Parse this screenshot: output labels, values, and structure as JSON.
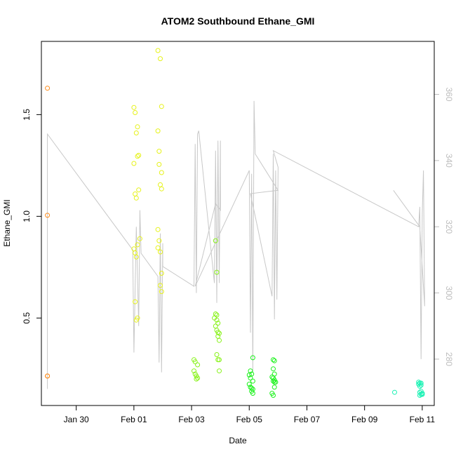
{
  "chart_data": {
    "type": "scatter",
    "title": "ATOM2 Southbound Ethane_GMI",
    "xlabel": "Date",
    "ylabel": "Ethane_GMI",
    "xlim": [
      "2017-01-28T19:00",
      "2017-02-11T10:00"
    ],
    "ylim": [
      0.07,
      1.86
    ],
    "y2lim": [
      266,
      376
    ],
    "x_ticks": [
      {
        "date": "2017-01-30",
        "label": "Jan 30"
      },
      {
        "date": "2017-02-01",
        "label": "Feb 01"
      },
      {
        "date": "2017-02-03",
        "label": "Feb 03"
      },
      {
        "date": "2017-02-05",
        "label": "Feb 05"
      },
      {
        "date": "2017-02-07",
        "label": "Feb 07"
      },
      {
        "date": "2017-02-09",
        "label": "Feb 09"
      },
      {
        "date": "2017-02-11",
        "label": "Feb 11"
      }
    ],
    "y_ticks": [
      0.5,
      1.0,
      1.5
    ],
    "y_tick_labels": [
      "0.5",
      "1.0",
      "1.5"
    ],
    "y2_ticks": [
      280,
      300,
      320,
      340,
      360
    ],
    "y2_tick_labels": [
      "280",
      "300",
      "320",
      "340",
      "360"
    ],
    "grid": false,
    "legend": "none",
    "colors": {
      "frame": "#000000",
      "right_axis": "#bdbdbd",
      "line": "#c8c8c8"
    },
    "series": [
      {
        "color": "#ff8c1a",
        "points": [
          [
            "2017-01-29T00:00",
            1.63
          ],
          [
            "2017-01-29T00:00",
            1.005
          ],
          [
            "2017-01-29T00:00",
            0.215
          ],
          [
            "2017-01-29T00:00",
            0.215
          ]
        ]
      },
      {
        "color": "#e6f21a",
        "points": [
          [
            "2017-02-01T00:00",
            1.535
          ],
          [
            "2017-02-01T01:00",
            1.51
          ],
          [
            "2017-02-01T03:00",
            1.44
          ],
          [
            "2017-02-01T02:00",
            1.41
          ],
          [
            "2017-02-01T04:00",
            1.3
          ],
          [
            "2017-02-01T03:00",
            1.295
          ],
          [
            "2017-02-01T00:00",
            1.26
          ],
          [
            "2017-02-01T04:00",
            1.13
          ],
          [
            "2017-02-01T01:00",
            1.11
          ],
          [
            "2017-02-01T02:00",
            1.09
          ],
          [
            "2017-02-01T05:00",
            0.89
          ],
          [
            "2017-02-01T00:00",
            0.84
          ],
          [
            "2017-02-01T03:00",
            0.86
          ],
          [
            "2017-02-01T01:00",
            0.82
          ],
          [
            "2017-02-01T02:00",
            0.8
          ],
          [
            "2017-02-01T01:00",
            0.58
          ],
          [
            "2017-02-01T03:00",
            0.5
          ],
          [
            "2017-02-01T02:00",
            0.49
          ],
          [
            "2017-02-01T20:00",
            1.815
          ],
          [
            "2017-02-01T22:00",
            1.775
          ],
          [
            "2017-02-01T23:00",
            1.54
          ],
          [
            "2017-02-01T20:00",
            1.42
          ],
          [
            "2017-02-01T21:00",
            1.32
          ],
          [
            "2017-02-01T21:00",
            1.255
          ],
          [
            "2017-02-01T23:00",
            1.215
          ],
          [
            "2017-02-01T22:00",
            1.155
          ],
          [
            "2017-02-01T23:00",
            1.135
          ],
          [
            "2017-02-01T20:00",
            0.935
          ],
          [
            "2017-02-01T21:00",
            0.88
          ],
          [
            "2017-02-01T20:00",
            0.845
          ],
          [
            "2017-02-01T22:00",
            0.825
          ],
          [
            "2017-02-01T23:00",
            0.72
          ],
          [
            "2017-02-01T22:00",
            0.66
          ],
          [
            "2017-02-01T23:00",
            0.63
          ]
        ]
      },
      {
        "color": "#88f21a",
        "points": [
          [
            "2017-02-03T02:00",
            0.295
          ],
          [
            "2017-02-03T03:00",
            0.285
          ],
          [
            "2017-02-03T05:00",
            0.27
          ],
          [
            "2017-02-03T02:00",
            0.24
          ],
          [
            "2017-02-03T03:00",
            0.225
          ],
          [
            "2017-02-03T04:00",
            0.215
          ],
          [
            "2017-02-03T05:00",
            0.205
          ],
          [
            "2017-02-03T04:00",
            0.2
          ],
          [
            "2017-02-03T20:00",
            0.88
          ],
          [
            "2017-02-03T21:00",
            0.725
          ],
          [
            "2017-02-03T20:00",
            0.52
          ],
          [
            "2017-02-03T21:00",
            0.515
          ],
          [
            "2017-02-03T19:00",
            0.5
          ],
          [
            "2017-02-03T21:00",
            0.49
          ],
          [
            "2017-02-03T22:00",
            0.475
          ],
          [
            "2017-02-03T20:00",
            0.46
          ],
          [
            "2017-02-03T21:00",
            0.44
          ],
          [
            "2017-02-03T22:00",
            0.43
          ],
          [
            "2017-02-03T23:00",
            0.425
          ],
          [
            "2017-02-03T22:00",
            0.41
          ],
          [
            "2017-02-03T23:00",
            0.39
          ],
          [
            "2017-02-03T21:00",
            0.32
          ],
          [
            "2017-02-03T22:00",
            0.295
          ],
          [
            "2017-02-03T23:00",
            0.295
          ],
          [
            "2017-02-03T23:00",
            0.24
          ]
        ]
      },
      {
        "color": "#1af21a",
        "points": [
          [
            "2017-02-05T03:00",
            0.305
          ],
          [
            "2017-02-05T01:00",
            0.24
          ],
          [
            "2017-02-05T02:00",
            0.225
          ],
          [
            "2017-02-05T00:00",
            0.22
          ],
          [
            "2017-02-05T01:00",
            0.205
          ],
          [
            "2017-02-05T03:00",
            0.19
          ],
          [
            "2017-02-05T00:00",
            0.175
          ],
          [
            "2017-02-05T01:00",
            0.16
          ],
          [
            "2017-02-05T02:00",
            0.155
          ],
          [
            "2017-02-05T03:00",
            0.15
          ],
          [
            "2017-02-05T02:00",
            0.14
          ],
          [
            "2017-02-05T03:00",
            0.13
          ],
          [
            "2017-02-05T20:00",
            0.295
          ],
          [
            "2017-02-05T21:00",
            0.29
          ],
          [
            "2017-02-05T20:00",
            0.25
          ],
          [
            "2017-02-05T21:00",
            0.225
          ],
          [
            "2017-02-05T19:00",
            0.21
          ],
          [
            "2017-02-05T20:00",
            0.205
          ],
          [
            "2017-02-05T21:00",
            0.195
          ],
          [
            "2017-02-05T20:00",
            0.19
          ],
          [
            "2017-02-05T21:00",
            0.185
          ],
          [
            "2017-02-05T22:00",
            0.185
          ],
          [
            "2017-02-05T21:00",
            0.16
          ],
          [
            "2017-02-05T19:00",
            0.13
          ],
          [
            "2017-02-05T20:00",
            0.12
          ]
        ]
      },
      {
        "color": "#1af2b4",
        "points": [
          [
            "2017-02-10T01:00",
            0.135
          ],
          [
            "2017-02-10T21:00",
            0.185
          ],
          [
            "2017-02-10T22:00",
            0.18
          ],
          [
            "2017-02-10T23:00",
            0.18
          ],
          [
            "2017-02-10T21:00",
            0.175
          ],
          [
            "2017-02-10T23:00",
            0.17
          ],
          [
            "2017-02-10T22:00",
            0.165
          ],
          [
            "2017-02-10T23:00",
            0.14
          ],
          [
            "2017-02-10T22:00",
            0.135
          ],
          [
            "2017-02-11T00:00",
            0.13
          ],
          [
            "2017-02-10T23:00",
            0.125
          ],
          [
            "2017-02-11T00:00",
            0.125
          ],
          [
            "2017-02-10T22:00",
            0.12
          ]
        ]
      }
    ],
    "line_series": {
      "axis": "right",
      "points": [
        [
          "2017-01-29T00:00",
          271
        ],
        [
          "2017-01-29T00:00",
          348
        ],
        [
          "2017-01-31T23:00",
          313
        ],
        [
          "2017-02-01T00:00",
          282
        ],
        [
          "2017-02-01T02:00",
          320
        ],
        [
          "2017-02-01T04:00",
          290
        ],
        [
          "2017-02-01T05:00",
          325
        ],
        [
          "2017-02-01T06:00",
          312
        ],
        [
          "2017-02-01T20:00",
          305
        ],
        [
          "2017-02-01T21:00",
          279
        ],
        [
          "2017-02-01T22:00",
          318
        ],
        [
          "2017-02-01T23:00",
          276
        ],
        [
          "2017-02-02T00:00",
          315
        ],
        [
          "2017-02-02T00:00",
          308
        ],
        [
          "2017-02-03T02:00",
          302
        ],
        [
          "2017-02-03T03:00",
          345
        ],
        [
          "2017-02-03T04:00",
          300
        ],
        [
          "2017-02-03T05:00",
          348
        ],
        [
          "2017-02-03T06:00",
          349
        ],
        [
          "2017-02-03T19:00",
          303
        ],
        [
          "2017-02-03T20:00",
          343
        ],
        [
          "2017-02-03T21:00",
          297
        ],
        [
          "2017-02-03T22:00",
          346
        ],
        [
          "2017-02-03T23:00",
          303
        ],
        [
          "2017-02-04T00:00",
          346
        ],
        [
          "2017-02-04T00:00",
          325
        ],
        [
          "2017-02-03T20:00",
          327
        ],
        [
          "2017-02-03T03:00",
          302
        ],
        [
          "2017-02-05T00:00",
          337
        ],
        [
          "2017-02-05T01:00",
          288
        ],
        [
          "2017-02-05T02:00",
          336
        ],
        [
          "2017-02-05T03:00",
          276
        ],
        [
          "2017-02-05T04:00",
          358
        ],
        [
          "2017-02-05T05:00",
          342
        ],
        [
          "2017-02-06T00:00",
          331
        ],
        [
          "2017-02-05T01:00",
          330
        ],
        [
          "2017-02-05T19:00",
          299
        ],
        [
          "2017-02-05T20:00",
          342
        ],
        [
          "2017-02-05T21:00",
          292
        ],
        [
          "2017-02-05T22:00",
          337
        ],
        [
          "2017-02-05T23:00",
          298
        ],
        [
          "2017-02-06T00:00",
          338
        ],
        [
          "2017-02-05T20:00",
          343
        ],
        [
          "2017-02-10T21:00",
          320
        ],
        [
          "2017-02-10T22:00",
          326
        ],
        [
          "2017-02-10T23:00",
          280
        ],
        [
          "2017-02-11T00:00",
          324
        ],
        [
          "2017-02-11T01:00",
          337
        ],
        [
          "2017-02-11T02:00",
          296
        ],
        [
          "2017-02-11T02:00",
          296
        ],
        [
          "2017-02-10T22:00",
          320
        ],
        [
          "2017-02-10T00:00",
          331
        ]
      ]
    }
  }
}
